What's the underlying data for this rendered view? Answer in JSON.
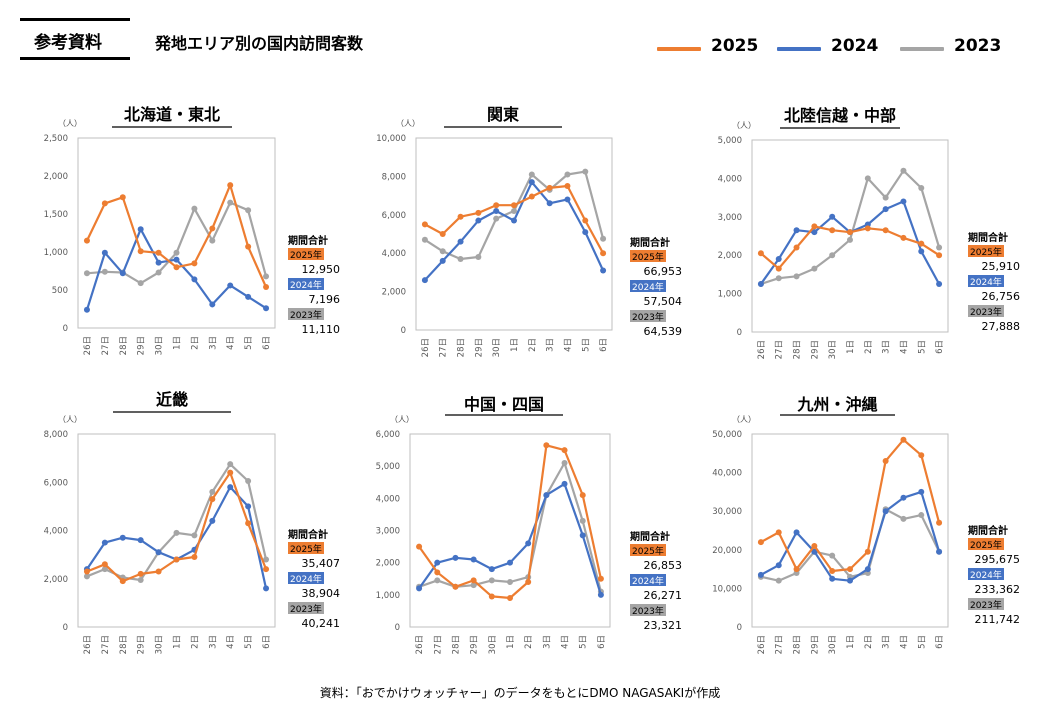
{
  "header": {
    "ref_label": "参考資料",
    "title": "発地エリア別の国内訪問客数"
  },
  "legend": [
    {
      "label": "2025",
      "color": "#ED7D31"
    },
    {
      "label": "2024",
      "color": "#4472C4"
    },
    {
      "label": "2023",
      "color": "#A5A5A5"
    }
  ],
  "footer": "資料：「おでかけウォッチャー」のデータをもとにDMO NAGASAKIが作成",
  "chart_data": [
    {
      "type": "line",
      "title": "北海道・東北",
      "unit": "（人）",
      "categories": [
        "26日",
        "27日",
        "28日",
        "29日",
        "30日",
        "1日",
        "2日",
        "3日",
        "4日",
        "5日",
        "6日"
      ],
      "yticks": [
        "0",
        "500",
        "1,000",
        "1,500",
        "2,000",
        "2,500"
      ],
      "ylim": [
        0,
        2500
      ],
      "series": [
        {
          "name": "2025",
          "values": [
            1150,
            1640,
            1720,
            1010,
            990,
            800,
            850,
            1310,
            1880,
            1070,
            540
          ]
        },
        {
          "name": "2024",
          "values": [
            240,
            990,
            720,
            1300,
            860,
            900,
            640,
            310,
            560,
            410,
            260
          ]
        },
        {
          "name": "2023",
          "values": [
            720,
            740,
            730,
            590,
            730,
            990,
            1570,
            1150,
            1650,
            1550,
            680
          ]
        }
      ],
      "totals": {
        "heading": "期間合計",
        "rows": [
          {
            "label": "2025年",
            "value": "12,950"
          },
          {
            "label": "2024年",
            "value": "7,196"
          },
          {
            "label": "2023年",
            "value": "11,110"
          }
        ]
      }
    },
    {
      "type": "line",
      "title": "関東",
      "unit": "（人）",
      "categories": [
        "26日",
        "27日",
        "28日",
        "29日",
        "30日",
        "1日",
        "2日",
        "3日",
        "4日",
        "5日",
        "6日"
      ],
      "yticks": [
        "0",
        "2,000",
        "4,000",
        "6,000",
        "8,000",
        "10,000"
      ],
      "ylim": [
        0,
        10000
      ],
      "series": [
        {
          "name": "2025",
          "values": [
            5500,
            5000,
            5900,
            6100,
            6500,
            6500,
            6950,
            7400,
            7500,
            5700,
            4000
          ]
        },
        {
          "name": "2024",
          "values": [
            2600,
            3600,
            4600,
            5700,
            6200,
            5700,
            7700,
            6600,
            6800,
            5100,
            3100
          ]
        },
        {
          "name": "2023",
          "values": [
            4700,
            4100,
            3700,
            3800,
            5800,
            6200,
            8100,
            7300,
            8100,
            8250,
            4750
          ]
        }
      ],
      "totals": {
        "heading": "期間合計",
        "rows": [
          {
            "label": "2025年",
            "value": "66,953"
          },
          {
            "label": "2024年",
            "value": "57,504"
          },
          {
            "label": "2023年",
            "value": "64,539"
          }
        ]
      }
    },
    {
      "type": "line",
      "title": "北陸信越・中部",
      "unit": "（人）",
      "categories": [
        "26日",
        "27日",
        "28日",
        "29日",
        "30日",
        "1日",
        "2日",
        "3日",
        "4日",
        "5日",
        "6日"
      ],
      "yticks": [
        "0",
        "1,000",
        "2,000",
        "3,000",
        "4,000",
        "5,000"
      ],
      "ylim": [
        0,
        5000
      ],
      "series": [
        {
          "name": "2025",
          "values": [
            2050,
            1650,
            2200,
            2750,
            2650,
            2600,
            2700,
            2650,
            2450,
            2300,
            2000
          ]
        },
        {
          "name": "2024",
          "values": [
            1250,
            1900,
            2650,
            2600,
            3000,
            2600,
            2800,
            3200,
            3400,
            2100,
            1250
          ]
        },
        {
          "name": "2023",
          "values": [
            1250,
            1400,
            1450,
            1650,
            2000,
            2400,
            4000,
            3500,
            4200,
            3750,
            2200
          ]
        }
      ],
      "totals": {
        "heading": "期間合計",
        "rows": [
          {
            "label": "2025年",
            "value": "25,910"
          },
          {
            "label": "2024年",
            "value": "26,756"
          },
          {
            "label": "2023年",
            "value": "27,888"
          }
        ]
      }
    },
    {
      "type": "line",
      "title": "近畿",
      "unit": "（人）",
      "categories": [
        "26日",
        "27日",
        "28日",
        "29日",
        "30日",
        "1日",
        "2日",
        "3日",
        "4日",
        "5日",
        "6日"
      ],
      "yticks": [
        "0",
        "2,000",
        "4,000",
        "6,000",
        "8,000"
      ],
      "ylim": [
        0,
        8000
      ],
      "series": [
        {
          "name": "2025",
          "values": [
            2300,
            2600,
            1900,
            2200,
            2300,
            2800,
            2900,
            5300,
            6400,
            4300,
            2400
          ]
        },
        {
          "name": "2024",
          "values": [
            2400,
            3500,
            3700,
            3600,
            3100,
            2800,
            3200,
            4400,
            5800,
            5000,
            1600
          ]
        },
        {
          "name": "2023",
          "values": [
            2100,
            2400,
            2050,
            1950,
            3100,
            3900,
            3800,
            5600,
            6750,
            6050,
            2800
          ]
        }
      ],
      "totals": {
        "heading": "期間合計",
        "rows": [
          {
            "label": "2025年",
            "value": "35,407"
          },
          {
            "label": "2024年",
            "value": "38,904"
          },
          {
            "label": "2023年",
            "value": "40,241"
          }
        ]
      }
    },
    {
      "type": "line",
      "title": "中国・四国",
      "unit": "（人）",
      "categories": [
        "26日",
        "27日",
        "28日",
        "29日",
        "30日",
        "1日",
        "2日",
        "3日",
        "4日",
        "5日",
        "6日"
      ],
      "yticks": [
        "0",
        "1,000",
        "2,000",
        "3,000",
        "4,000",
        "5,000",
        "6,000"
      ],
      "ylim": [
        0,
        6000
      ],
      "series": [
        {
          "name": "2025",
          "values": [
            2500,
            1700,
            1250,
            1450,
            950,
            900,
            1400,
            5650,
            5500,
            4100,
            1500
          ]
        },
        {
          "name": "2024",
          "values": [
            1200,
            2000,
            2150,
            2100,
            1800,
            2000,
            2600,
            4100,
            4450,
            2850,
            1000
          ]
        },
        {
          "name": "2023",
          "values": [
            1250,
            1450,
            1250,
            1300,
            1450,
            1400,
            1550,
            4100,
            5100,
            3300,
            1100
          ]
        }
      ],
      "totals": {
        "heading": "期間合計",
        "rows": [
          {
            "label": "2025年",
            "value": "26,853"
          },
          {
            "label": "2024年",
            "value": "26,271"
          },
          {
            "label": "2023年",
            "value": "23,321"
          }
        ]
      }
    },
    {
      "type": "line",
      "title": "九州・沖縄",
      "unit": "（人）",
      "categories": [
        "26日",
        "27日",
        "28日",
        "29日",
        "30日",
        "1日",
        "2日",
        "3日",
        "4日",
        "5日",
        "6日"
      ],
      "yticks": [
        "0",
        "10,000",
        "20,000",
        "30,000",
        "40,000",
        "50,000"
      ],
      "ylim": [
        0,
        50000
      ],
      "series": [
        {
          "name": "2025",
          "values": [
            22000,
            24500,
            15000,
            21000,
            14500,
            15000,
            19500,
            43000,
            48500,
            44500,
            27000
          ]
        },
        {
          "name": "2024",
          "values": [
            13500,
            16000,
            24500,
            19500,
            12500,
            12000,
            15000,
            30000,
            33500,
            35000,
            19500
          ]
        },
        {
          "name": "2023",
          "values": [
            13000,
            12000,
            14000,
            19500,
            18500,
            13000,
            14000,
            30500,
            28000,
            29000,
            19500
          ]
        }
      ],
      "totals": {
        "heading": "期間合計",
        "rows": [
          {
            "label": "2025年",
            "value": "295,675"
          },
          {
            "label": "2024年",
            "value": "233,362"
          },
          {
            "label": "2023年",
            "value": "211,742"
          }
        ]
      }
    }
  ]
}
